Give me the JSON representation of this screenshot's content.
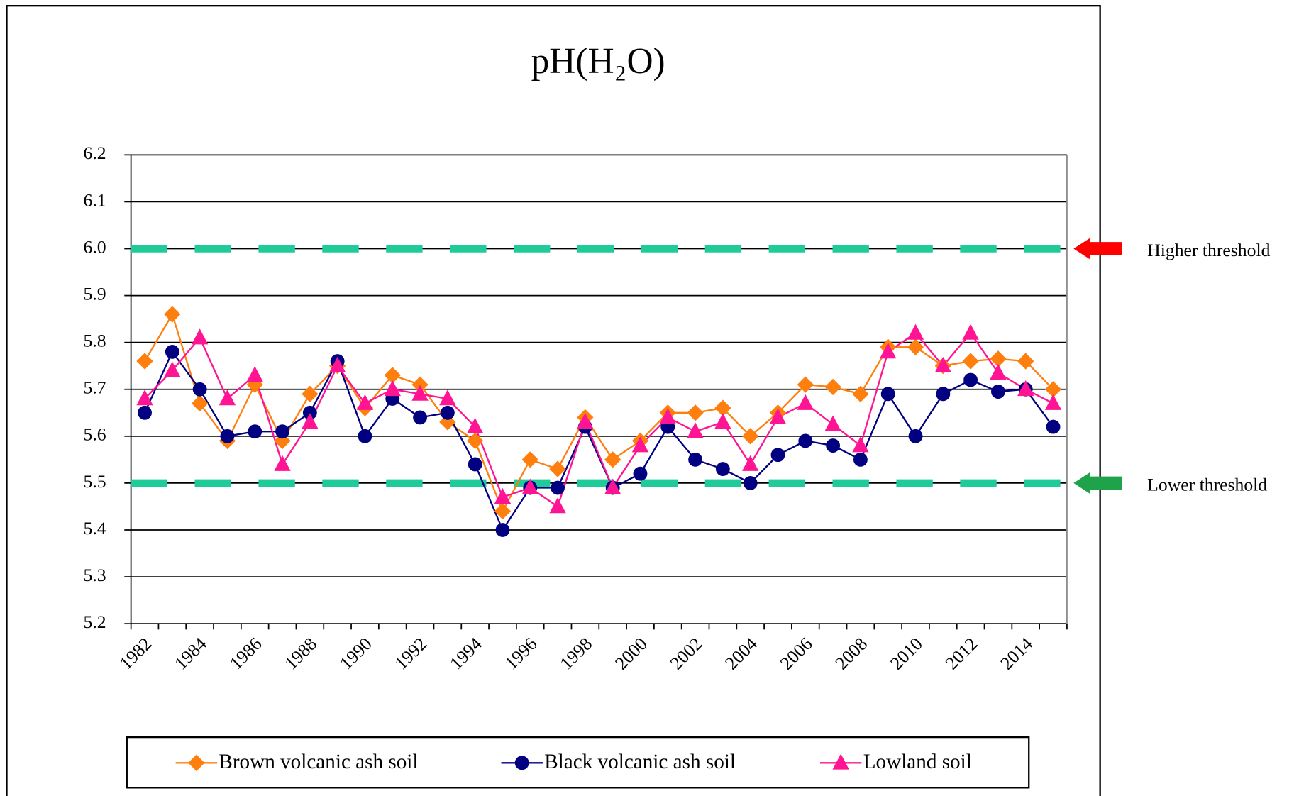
{
  "chart_data": {
    "type": "line",
    "title": "pH(H₂O)",
    "categories": [
      "1982",
      null,
      "1984",
      null,
      "1986",
      null,
      "1988",
      null,
      "1990",
      null,
      "1992",
      null,
      "1994",
      null,
      "1996",
      null,
      "1998",
      null,
      "2000",
      null,
      "2002",
      null,
      "2004",
      null,
      "2006",
      null,
      "2008",
      null,
      "2010",
      null,
      "2012",
      null,
      "2014",
      null
    ],
    "series": [
      {
        "name": "Brown volcanic ash soil",
        "color": "#ff7f0e",
        "marker": "diamond",
        "values": [
          5.76,
          5.86,
          5.67,
          5.59,
          5.71,
          5.59,
          5.69,
          5.75,
          5.66,
          5.73,
          5.71,
          5.63,
          5.59,
          5.44,
          5.55,
          5.53,
          5.64,
          5.55,
          5.59,
          5.65,
          5.65,
          5.66,
          5.6,
          5.65,
          5.71,
          5.705,
          5.69,
          5.79,
          5.79,
          5.75,
          5.76,
          5.765,
          5.76,
          5.7
        ]
      },
      {
        "name": "Black volcanic ash soil",
        "color": "#000080",
        "marker": "circle",
        "values": [
          5.65,
          5.78,
          5.7,
          5.6,
          5.61,
          5.61,
          5.65,
          5.76,
          5.6,
          5.68,
          5.64,
          5.65,
          5.54,
          5.4,
          5.49,
          5.49,
          5.62,
          5.49,
          5.52,
          5.62,
          5.55,
          5.53,
          5.5,
          5.56,
          5.59,
          5.58,
          5.55,
          5.69,
          5.6,
          5.69,
          5.72,
          5.695,
          5.7,
          5.62
        ]
      },
      {
        "name": "Lowland soil",
        "color": "#ff1493",
        "marker": "triangle",
        "values": [
          5.68,
          5.74,
          5.81,
          5.68,
          5.73,
          5.54,
          5.63,
          5.75,
          5.67,
          5.7,
          5.69,
          5.68,
          5.62,
          5.47,
          5.49,
          5.45,
          5.63,
          5.49,
          5.58,
          5.64,
          5.61,
          5.63,
          5.54,
          5.64,
          5.67,
          5.625,
          5.58,
          5.78,
          5.82,
          5.75,
          5.82,
          5.735,
          5.7,
          5.67
        ]
      }
    ],
    "thresholds": [
      {
        "value": 6.0,
        "label": "Higher threshold",
        "label_color": "#ff0000",
        "arrow_color": "#ff0000"
      },
      {
        "value": 5.5,
        "label": "Lower threshold",
        "label_color": "#3333cc",
        "arrow_color": "#1fa34a"
      }
    ],
    "threshold_line_color": "#1fcc99",
    "ylim": [
      5.2,
      6.2
    ],
    "yticks": [
      {
        "value": 5.2,
        "label": "5.2"
      },
      {
        "value": 5.3,
        "label": "5.3"
      },
      {
        "value": 5.4,
        "label": "5.4"
      },
      {
        "value": 5.5,
        "label": "5.5"
      },
      {
        "value": 5.6,
        "label": "5.6"
      },
      {
        "value": 5.7,
        "label": "5.7"
      },
      {
        "value": 5.8,
        "label": "5.8"
      },
      {
        "value": 5.9,
        "label": "5.9"
      },
      {
        "value": 6.0,
        "label": "6.0"
      },
      {
        "value": 6.1,
        "label": "6.1"
      },
      {
        "value": 6.2,
        "label": "6.2"
      }
    ],
    "grid": true,
    "legend": "bottom"
  }
}
